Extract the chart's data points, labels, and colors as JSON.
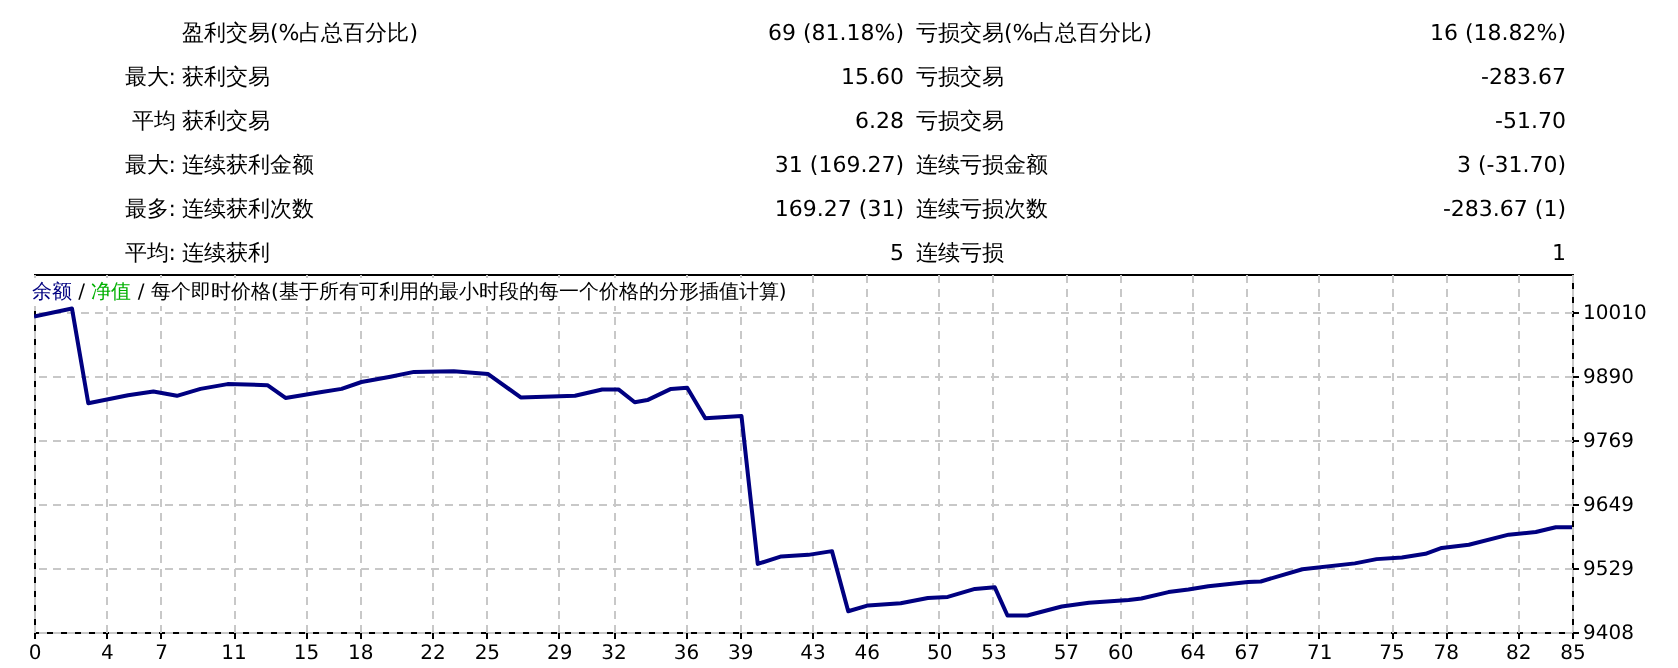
{
  "chart_data": [
    {
      "type": "other",
      "annotations": [
        "盈利交易(%占总百分比)",
        "69 (81.18%)",
        "亏损交易(%占总百分比)",
        "16 (18.82%)",
        "最大:",
        "获利交易",
        "15.60",
        "亏损交易",
        "-283.67",
        "平均",
        "获利交易",
        "6.28",
        "亏损交易",
        "-51.70",
        "最大:",
        "连续获利金额",
        "31 (169.27)",
        "连续亏损金额",
        "3 (-31.70)",
        "最多:",
        "连续获利次数",
        "169.27 (31)",
        "连续亏损次数",
        "-283.67 (1)",
        "平均:",
        "连续获利",
        "5",
        "连续亏损",
        "1"
      ]
    },
    {
      "type": "line",
      "annotations": [
        "/",
        "/"
      ],
      "subtitle": "每个即时价格(基于所有可利用的最小时段的每一个价格的分形插值计算)",
      "legend": "top left",
      "grid": true,
      "xlim": [
        0,
        85
      ],
      "xticks": [
        0,
        4,
        7,
        11,
        15,
        18,
        22,
        25,
        29,
        32,
        36,
        39,
        43,
        46,
        50,
        53,
        57,
        60,
        64,
        67,
        71,
        75,
        78,
        82,
        85
      ],
      "ylim": [
        9408,
        10081
      ],
      "yticks": [
        9408,
        9529,
        9649,
        9769,
        9890,
        10010
      ],
      "series": [
        {
          "name": "余额",
          "color": "#000080",
          "x": [
            0,
            2.1,
            3.0,
            5.2,
            6.6,
            7.9,
            9.2,
            10.7,
            12.9,
            13.9,
            15.9,
            17.0,
            18.1,
            19.7,
            21.0,
            23.2,
            25.1,
            26.9,
            29.9,
            31.4,
            32.3,
            33.2,
            33.9,
            35.2,
            36.1,
            37.1,
            39.1,
            40.0,
            41.3,
            42.8,
            44.1,
            45.0,
            46.1,
            47.9,
            49.4,
            50.5,
            52.0,
            53.1,
            53.8,
            54.9,
            56.8,
            58.3,
            60.5,
            61.2,
            62.7,
            63.8,
            64.9,
            67.1,
            67.8,
            70.1,
            73.0,
            74.2,
            75.6,
            76.9,
            77.8,
            79.3,
            81.5,
            83.0,
            84.1,
            85.0
          ],
          "values": [
            10001,
            10016,
            9838,
            9853,
            9860,
            9852,
            9865,
            9874,
            9872,
            9848,
            9859,
            9865,
            9878,
            9888,
            9897,
            9898,
            9893,
            9849,
            9852,
            9864,
            9864,
            9840,
            9844,
            9865,
            9867,
            9810,
            9814,
            9536,
            9550,
            9553,
            9560,
            9447,
            9458,
            9462,
            9472,
            9474,
            9489,
            9492,
            9439,
            9439,
            9456,
            9463,
            9468,
            9471,
            9483,
            9488,
            9494,
            9502,
            9503,
            9526,
            9537,
            9545,
            9548,
            9555,
            9566,
            9572,
            9591,
            9596,
            9605,
            9605
          ]
        },
        {
          "name": "净值",
          "color": "#00b000",
          "values": [
            null
          ]
        }
      ]
    }
  ]
}
